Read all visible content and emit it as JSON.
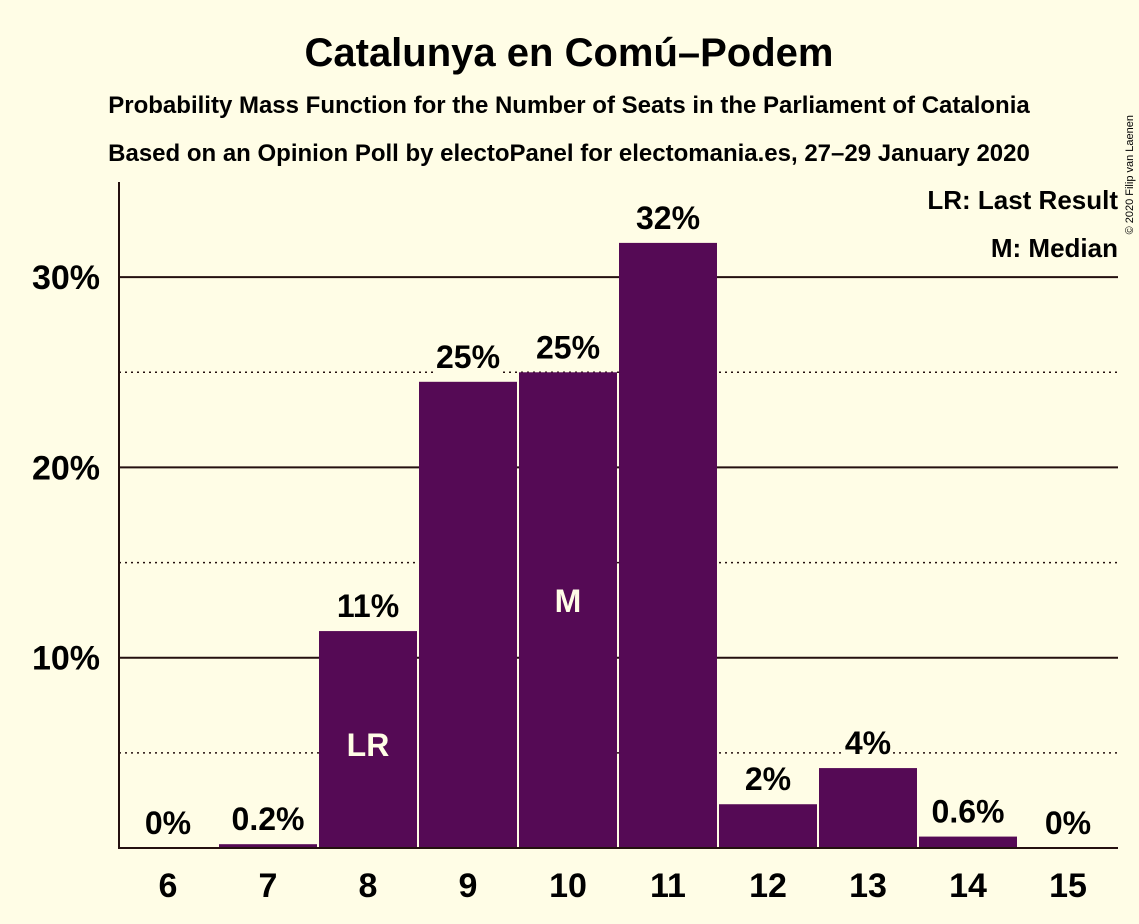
{
  "title": "Catalunya en Comú–Podem",
  "subtitle1": "Probability Mass Function for the Number of Seats in the Parliament of Catalonia",
  "subtitle2": "Based on an Opinion Poll by electoPanel for electomania.es, 27–29 January 2020",
  "copyright": "© 2020 Filip van Laenen",
  "legend": {
    "last_result": "LR: Last Result",
    "median": "M: Median"
  },
  "colors": {
    "bar": "#550a55",
    "background": "#fffde6",
    "text": "#24100f"
  },
  "chart_data": {
    "type": "bar",
    "categories": [
      "6",
      "7",
      "8",
      "9",
      "10",
      "11",
      "12",
      "13",
      "14",
      "15"
    ],
    "values": [
      0,
      0.2,
      11.4,
      24.5,
      25.0,
      31.8,
      2.3,
      4.2,
      0.6,
      0
    ],
    "data_labels": [
      "0%",
      "0.2%",
      "11%",
      "25%",
      "25%",
      "32%",
      "2%",
      "4%",
      "0.6%",
      "0%"
    ],
    "bar_markers": {
      "8": "LR",
      "10": "M"
    },
    "ylim": [
      0,
      35
    ],
    "yticks": [
      10,
      20,
      30
    ],
    "ytick_labels": [
      "10%",
      "20%",
      "30%"
    ],
    "minor_gridlines": [
      5,
      15,
      25
    ],
    "grid": true,
    "legend_position": "top-right"
  }
}
